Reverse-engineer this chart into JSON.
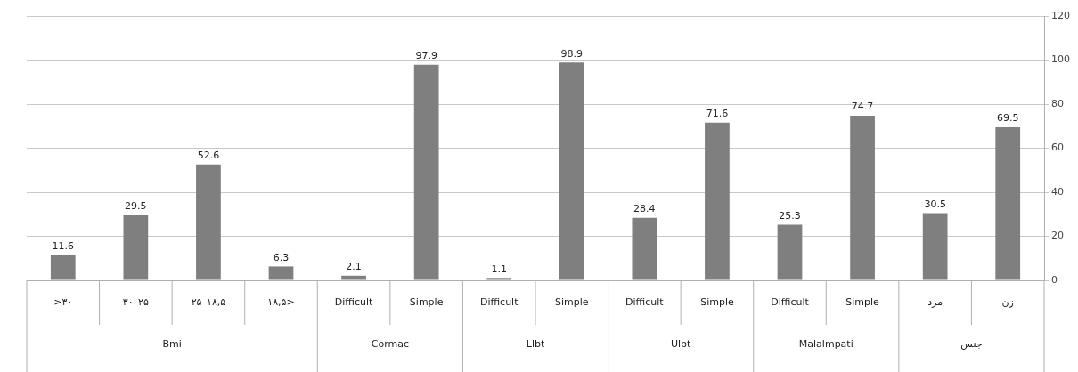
{
  "chart_data": {
    "type": "bar",
    "categories": [
      ">۳۰",
      "۳۰–۲۵",
      "۲۵–۱۸,۵",
      "۱۸,۵>",
      "Difficult",
      "Simple",
      "Difficult",
      "Simple",
      "Difficult",
      "Simple",
      "Difficult",
      "Simple",
      "مرد",
      "زن"
    ],
    "values": [
      11.6,
      29.5,
      52.6,
      6.3,
      2.1,
      97.9,
      1.1,
      98.9,
      28.4,
      71.6,
      25.3,
      74.7,
      30.5,
      69.5
    ],
    "color": "#7f7f7f",
    "data_labels": true,
    "ylim": [
      0,
      120
    ],
    "yticks": [
      0,
      20,
      40,
      60,
      80,
      100,
      120
    ],
    "grid": "y",
    "legend": false,
    "annotations": [
      "Bmi",
      "Cormac",
      "Llbt",
      "Ulbt",
      "Malalmpati",
      "جنس"
    ]
  }
}
